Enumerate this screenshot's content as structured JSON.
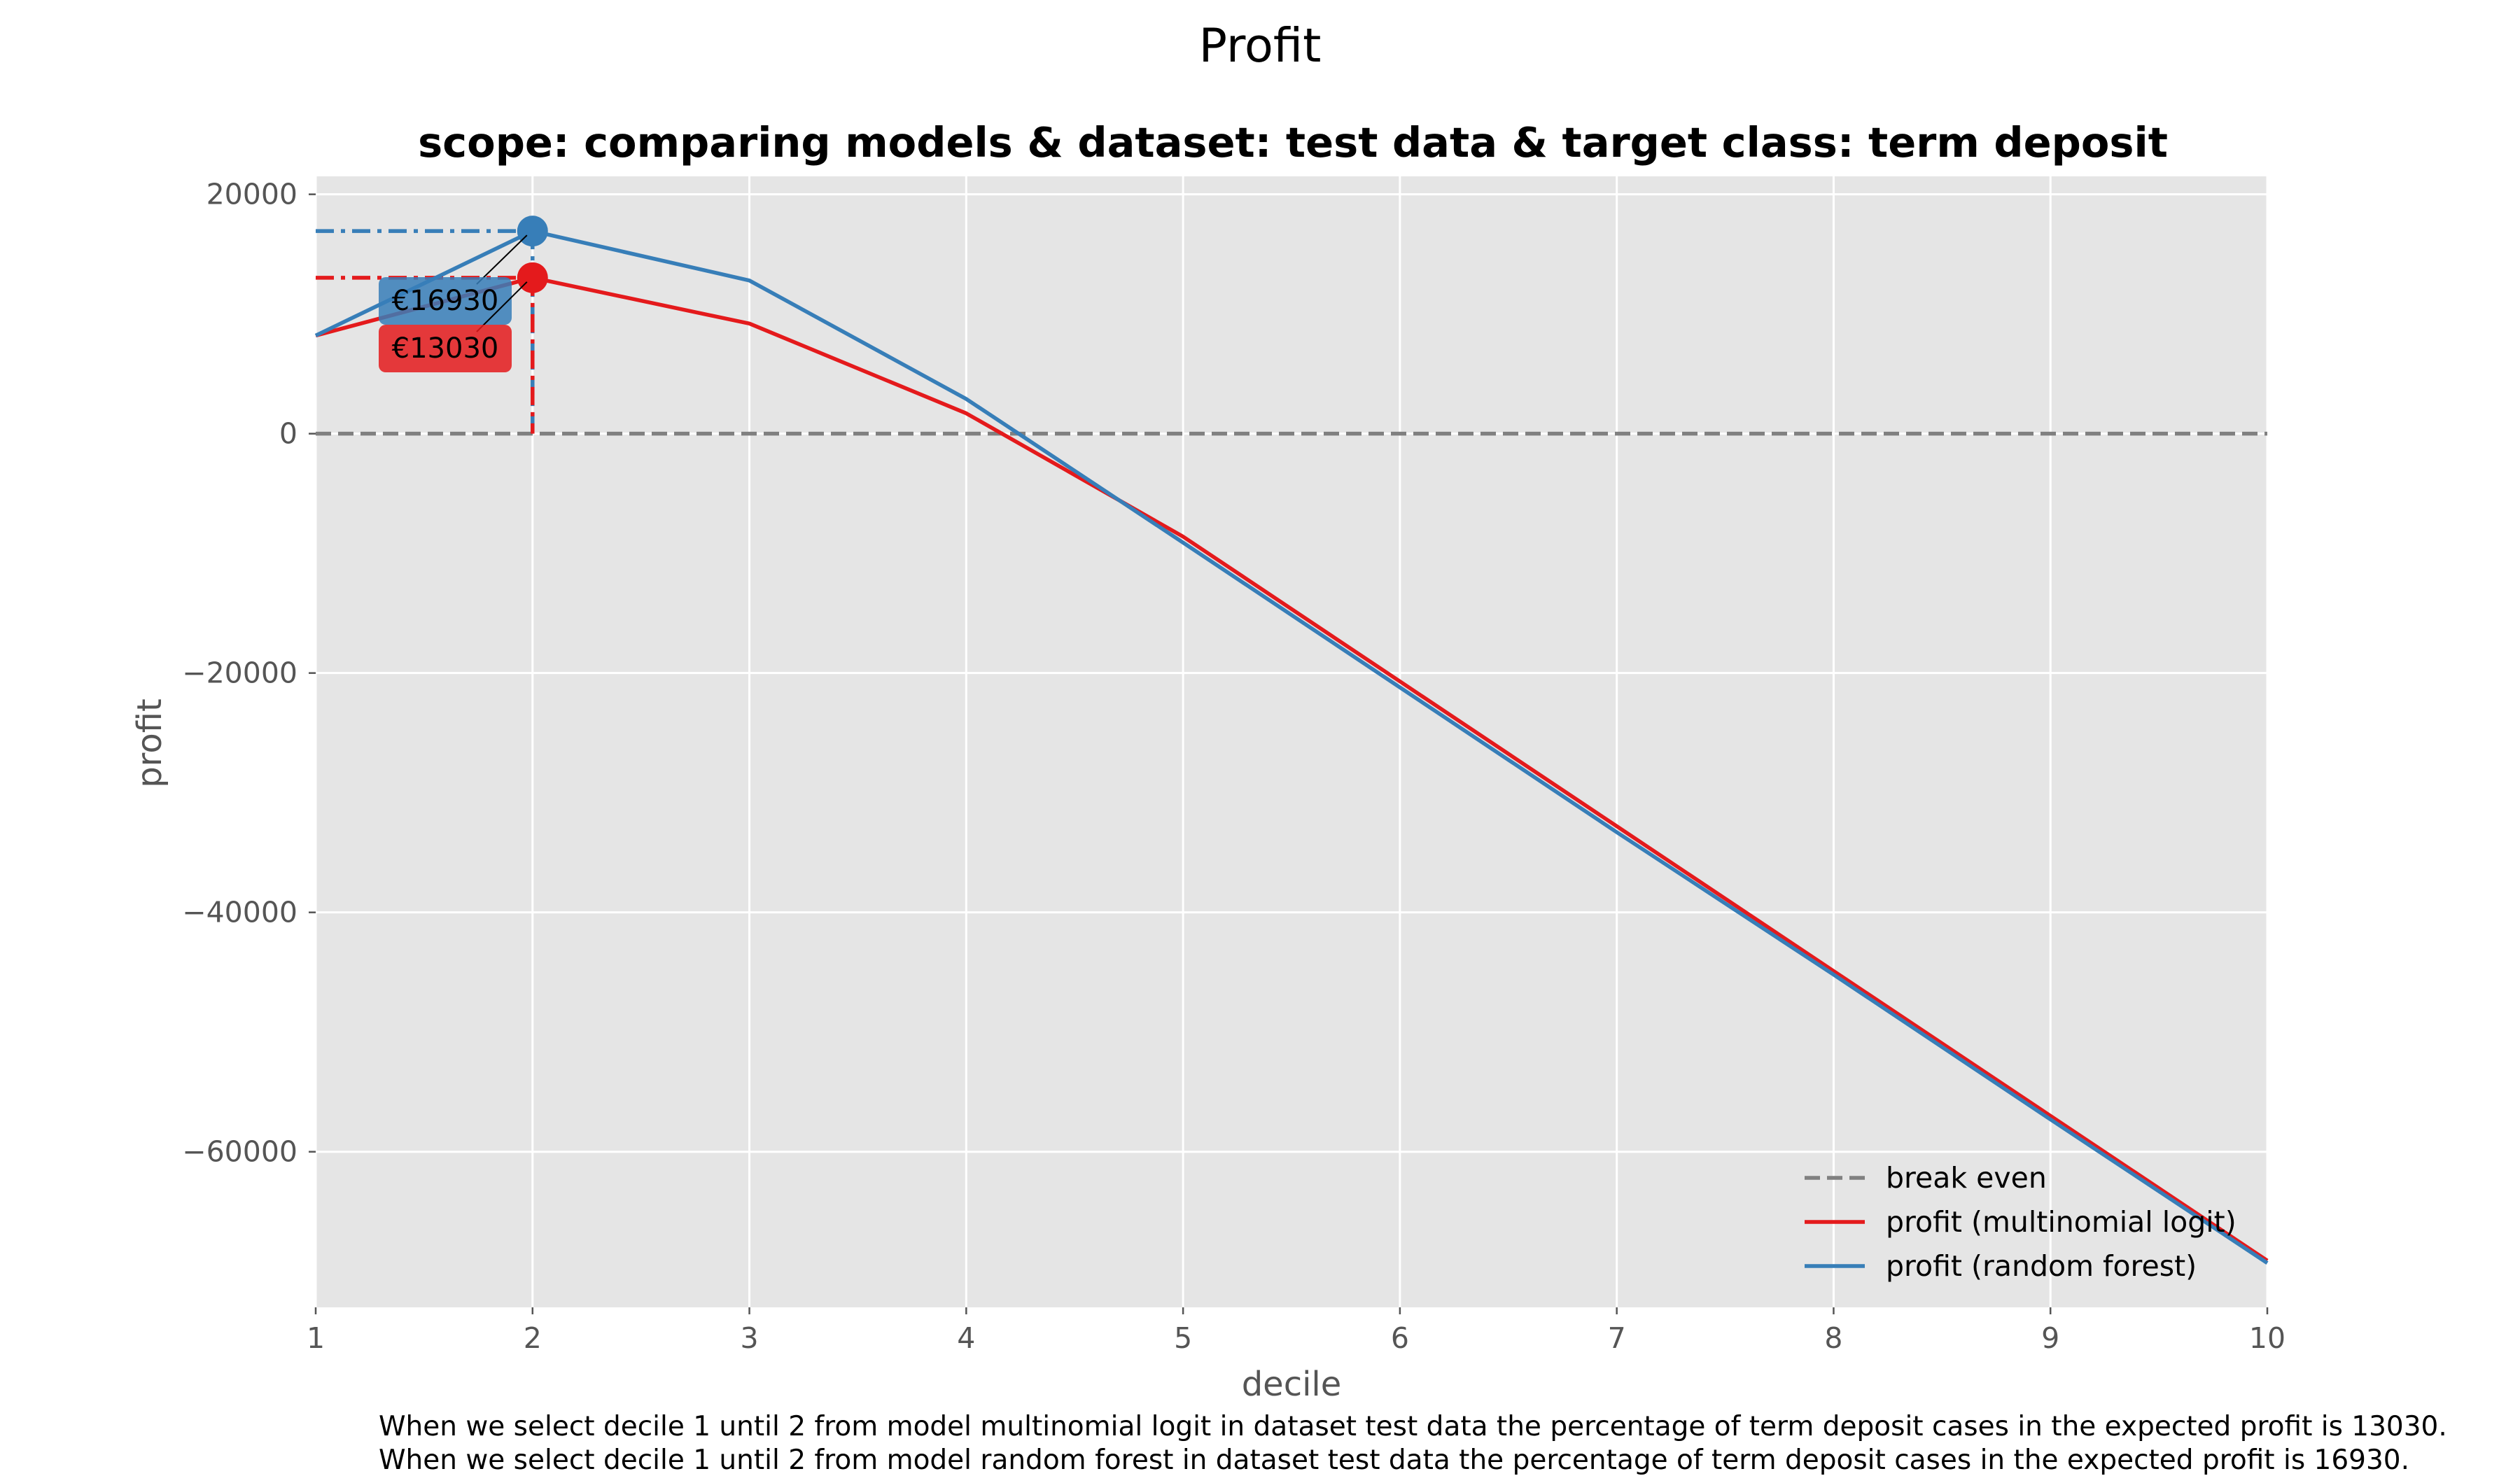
{
  "chart_data": {
    "type": "line",
    "suptitle": "Profit",
    "title": "scope: comparing models & dataset: test data & target class: term deposit",
    "xlabel": "decile",
    "ylabel": "profit",
    "x": [
      1,
      2,
      3,
      4,
      5,
      6,
      7,
      8,
      9,
      10
    ],
    "x_ticks": [
      "1",
      "2",
      "3",
      "4",
      "5",
      "6",
      "7",
      "8",
      "9",
      "10"
    ],
    "xlim": [
      1,
      10
    ],
    "ylim": [
      -73000,
      21500
    ],
    "y_ticks": [
      20000,
      0,
      -20000,
      -40000,
      -60000
    ],
    "y_tick_labels": [
      "20000",
      "0",
      "−20000",
      "−40000",
      "−60000"
    ],
    "grid": true,
    "legend_position": "lower-right",
    "break_even": {
      "name": "break even",
      "value": 0,
      "color": "#808080"
    },
    "series": [
      {
        "name": "profit (multinomial logit)",
        "color": "#e41a1c",
        "values": [
          8200,
          13030,
          9200,
          1700,
          -8600,
          -20700,
          -32800,
          -44900,
          -57000,
          -69100
        ]
      },
      {
        "name": "profit (random forest)",
        "color": "#377eb8",
        "values": [
          8200,
          16930,
          12800,
          2900,
          -9100,
          -21200,
          -33300,
          -45200,
          -57300,
          -69300
        ]
      }
    ],
    "annotations": [
      {
        "series": 1,
        "x": 2,
        "y": 16930,
        "label": "€16930",
        "color": "#377eb8"
      },
      {
        "series": 0,
        "x": 2,
        "y": 13030,
        "label": "€13030",
        "color": "#e41a1c"
      }
    ]
  },
  "footnotes": [
    "When we select decile 1 until 2 from model multinomial logit in dataset test data the percentage of term deposit cases in the expected profit is 13030.",
    "When we select decile 1 until 2 from model random forest in dataset test data the percentage of term deposit cases in the expected profit is 16930."
  ]
}
